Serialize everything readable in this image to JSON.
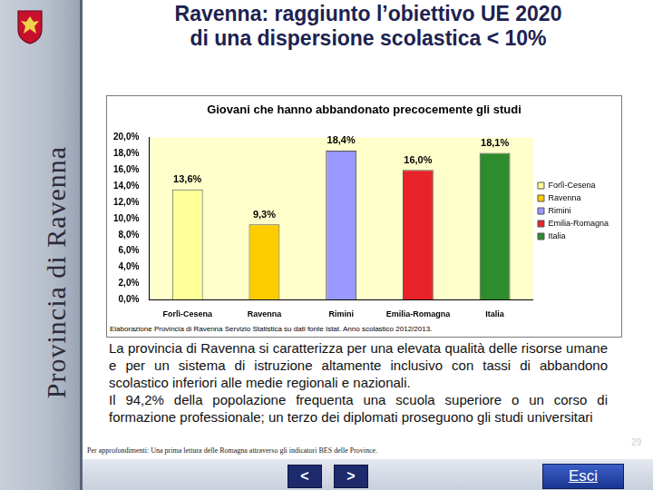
{
  "chart_data": {
    "type": "bar",
    "title": "Giovani che hanno abbandonato precocemente gli studi",
    "categories": [
      "Forlì-Cesena",
      "Ravenna",
      "Rimini",
      "Emilia-Romagna",
      "Italia"
    ],
    "values": [
      13.6,
      9.3,
      18.4,
      16.0,
      18.1
    ],
    "value_labels": [
      "13,6%",
      "9,3%",
      "18,4%",
      "16,0%",
      "18,1%"
    ],
    "data_labels": true,
    "colors": [
      "#ffff99",
      "#ffcc00",
      "#9999ff",
      "#e8242a",
      "#2e8b2e"
    ],
    "ylim": [
      0,
      20
    ],
    "yticks": [
      {
        "value": 0,
        "label": "0,0%"
      },
      {
        "value": 2,
        "label": "2,0%"
      },
      {
        "value": 4,
        "label": "4,0%"
      },
      {
        "value": 6,
        "label": "6,0%"
      },
      {
        "value": 8,
        "label": "8,0%"
      },
      {
        "value": 10,
        "label": "10,0%"
      },
      {
        "value": 12,
        "label": "12,0%"
      },
      {
        "value": 14,
        "label": "14,0%"
      },
      {
        "value": 16,
        "label": "16,0%"
      },
      {
        "value": 18,
        "label": "18,0%"
      },
      {
        "value": 20,
        "label": "20,0%"
      }
    ],
    "grid": false,
    "legend": "right",
    "annotations": [
      "Elaborazione Provincia di Ravenna Servizio Statistica su dati fonte Istat. Anno scolastico 2012/2013."
    ]
  },
  "slide": {
    "header": {
      "title": [
        "Ravenna: raggiunto l’obiettivo UE 2020",
        "di una dispersione scolastica < 10%"
      ]
    },
    "sidebar": {
      "title": "Provincia di Ravenna"
    },
    "body": {
      "paragraphs": [
        "La provincia di Ravenna si caratterizza per una elevata qualità delle risorse umane e per un sistema di istruzione altamente inclusivo con tassi di abbandono scolastico inferiori alle medie regionali e nazionali.",
        "Il 94,2% della popolazione frequenta una scuola superiore o un corso di formazione professionale; un terzo dei diplomati proseguono gli studi universitari"
      ]
    },
    "footer": {
      "note": "Per approfondimenti: Una prima lettura delle Romagna attraverso gli indicatori BES delle Province.",
      "page_number": "29",
      "buttons": [
        "<",
        ">"
      ],
      "exit": "Esci"
    }
  }
}
